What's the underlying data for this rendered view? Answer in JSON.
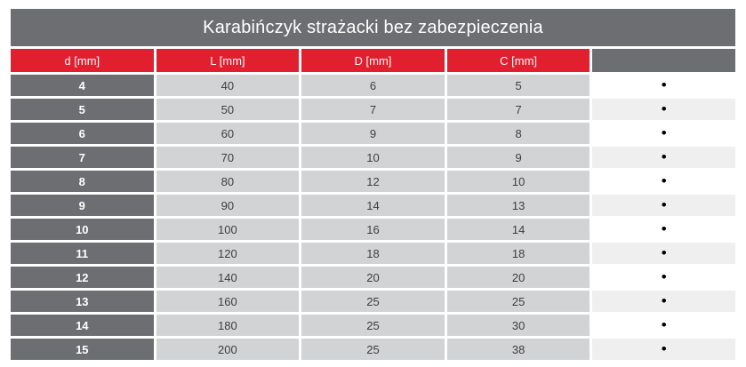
{
  "title": "Karabińczyk strażacki bez zabezpieczenia",
  "table": {
    "columns": [
      "d [mm]",
      "L [mm]",
      "D [mm]",
      "C [mm]",
      ""
    ],
    "rows": [
      [
        "4",
        "40",
        "6",
        "5"
      ],
      [
        "5",
        "50",
        "7",
        "7"
      ],
      [
        "6",
        "60",
        "9",
        "8"
      ],
      [
        "7",
        "70",
        "10",
        "9"
      ],
      [
        "8",
        "80",
        "12",
        "10"
      ],
      [
        "9",
        "90",
        "14",
        "13"
      ],
      [
        "10",
        "100",
        "16",
        "14"
      ],
      [
        "11",
        "120",
        "18",
        "18"
      ],
      [
        "12",
        "140",
        "20",
        "20"
      ],
      [
        "13",
        "160",
        "25",
        "25"
      ],
      [
        "14",
        "180",
        "25",
        "30"
      ],
      [
        "15",
        "200",
        "25",
        "38"
      ]
    ],
    "bullet_symbol": "•"
  },
  "colors": {
    "header_red": "#e11f2e",
    "dark_gray": "#6d6e71",
    "cell_gray": "#d2d3d4",
    "alt_row_gray": "#efefef",
    "bullet_black": "#000000",
    "background": "#ffffff"
  }
}
